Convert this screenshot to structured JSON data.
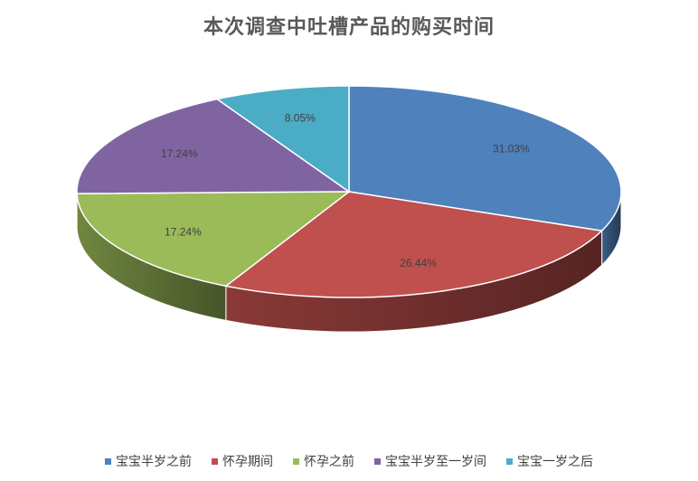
{
  "chart_data": {
    "type": "pie",
    "title": "本次调查中吐槽产品的购买时间",
    "categories": [
      "宝宝半岁之前",
      "怀孕期间",
      "怀孕之前",
      "宝宝半岁至一岁间",
      "宝宝一岁之后"
    ],
    "values": [
      31.03,
      26.44,
      17.24,
      17.24,
      8.05
    ],
    "labels": [
      "31.03%",
      "26.44%",
      "17.24%",
      "17.24%",
      "8.05%"
    ],
    "colors": [
      "#4f81bd",
      "#c0504d",
      "#9bbb59",
      "#8064a2",
      "#4bacc6"
    ],
    "legend_position": "bottom",
    "style": "3d"
  }
}
